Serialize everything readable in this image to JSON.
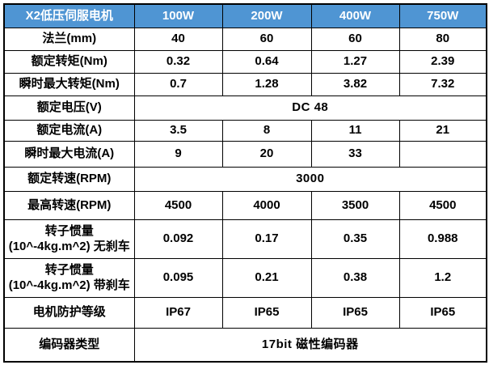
{
  "table": {
    "header": {
      "title": "X2低压伺服电机",
      "columns": [
        "100W",
        "200W",
        "400W",
        "750W"
      ]
    },
    "rows": [
      {
        "label": "法兰(mm)",
        "type": "values",
        "values": [
          "40",
          "60",
          "60",
          "80"
        ]
      },
      {
        "label": "额定转矩(Nm)",
        "type": "values",
        "values": [
          "0.32",
          "0.64",
          "1.27",
          "2.39"
        ]
      },
      {
        "label": "瞬时最大转矩(Nm)",
        "type": "values",
        "values": [
          "0.7",
          "1.28",
          "3.82",
          "7.32"
        ]
      },
      {
        "label": "额定电压(V)",
        "type": "merged",
        "value": "DC 48"
      },
      {
        "label": "额定电流(A)",
        "type": "values",
        "values": [
          "3.5",
          "8",
          "11",
          "21"
        ]
      },
      {
        "label": "瞬时最大电流(A)",
        "type": "values",
        "values": [
          "9",
          "20",
          "33",
          ""
        ]
      },
      {
        "label": "额定转速(RPM)",
        "type": "merged",
        "value": "3000"
      },
      {
        "label": "最高转速(RPM)",
        "type": "values",
        "values": [
          "4500",
          "4000",
          "3500",
          "4500"
        ]
      },
      {
        "label": "转子惯量(10^-4kg.m^2) 无刹车",
        "type": "values",
        "values": [
          "0.092",
          "0.17",
          "0.35",
          "0.988"
        ]
      },
      {
        "label": "转子惯量(10^-4kg.m^2) 带刹车",
        "type": "values",
        "values": [
          "0.095",
          "0.21",
          "0.38",
          "1.2"
        ]
      },
      {
        "label": "电机防护等级",
        "type": "values",
        "values": [
          "IP67",
          "IP65",
          "IP65",
          "IP65"
        ]
      },
      {
        "label": "编码器类型",
        "type": "merged",
        "value": "17bit 磁性编码器"
      }
    ],
    "colors": {
      "header_bg": "#4f95d3",
      "header_text": "#ffffff",
      "border": "#000000",
      "cell_text": "#000000",
      "background": "#ffffff"
    }
  }
}
